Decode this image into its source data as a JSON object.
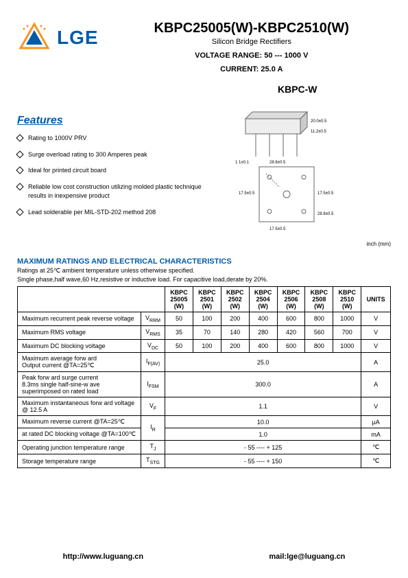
{
  "logo": {
    "text": "LGE",
    "color": "#005baa",
    "triangle_outer": "#f7941e",
    "triangle_inner": "#005baa"
  },
  "header": {
    "title": "KBPC25005(W)-KBPC2510(W)",
    "subtitle": "Silicon Bridge Rectifiers",
    "voltage_label": "VOLTAGE  RANGE:",
    "voltage_value": "50 --- 1000 V",
    "current_label": "CURRENT:",
    "current_value": "25.0 A"
  },
  "package_label": "KBPC-W",
  "inch_note": "inch (mm)",
  "features": {
    "title": "Features",
    "items": [
      "Rating to 1000V PRV",
      "Surge overload rating to 300 Amperes peak",
      "Ideal for printed circuit board",
      "Reliable low cost construction utilizing molded plastic technique results in inexpensive product",
      "Lead solderable per MIL-STD-202 method 208"
    ]
  },
  "ratings": {
    "title": "MAXIMUM RATINGS AND ELECTRICAL CHARACTERISTICS",
    "note1": "Ratings at 25℃ ambient temperature unless otherwise specified.",
    "note2": "Single phase,half wave,60 Hz,resistive or inductive load. For capacitive load,derate by 20%."
  },
  "table": {
    "columns": [
      "",
      "",
      "KBPC 25005 (W)",
      "KBPC 2501 (W)",
      "KBPC 2502 (W)",
      "KBPC 2504 (W)",
      "KBPC 2506 (W)",
      "KBPC 2508 (W)",
      "KBPC 2510 (W)",
      "UNITS"
    ],
    "rows": [
      {
        "label": "Maximum recurrent peak reverse voltage",
        "sym": "V",
        "sub": "RRM",
        "vals": [
          "50",
          "100",
          "200",
          "400",
          "600",
          "800",
          "1000"
        ],
        "unit": "V"
      },
      {
        "label": "Maximum RMS voltage",
        "sym": "V",
        "sub": "RMS",
        "vals": [
          "35",
          "70",
          "140",
          "280",
          "420",
          "560",
          "700"
        ],
        "unit": "V"
      },
      {
        "label": "Maximum DC blocking voltage",
        "sym": "V",
        "sub": "DC",
        "vals": [
          "50",
          "100",
          "200",
          "400",
          "600",
          "800",
          "1000"
        ],
        "unit": "V"
      },
      {
        "label": "Maximum average forw ard\n Output current     @TA=25℃",
        "sym": "I",
        "sub": "F(AV)",
        "span": "25.0",
        "unit": "A"
      },
      {
        "label": "Peak forw ard surge current\n 8.3ms single half-sine-w ave\n superimposed on rated load",
        "sym": "I",
        "sub": "FSM",
        "span": "300.0",
        "unit": "A"
      },
      {
        "label": "Maximum instantaneous forw ard voltage\n                      @  12.5  A",
        "sym": "V",
        "sub": "F",
        "span": "1.1",
        "unit": "V"
      },
      {
        "label": "Maximum reverse current        @TA=25℃",
        "sym": "I",
        "sub": "R",
        "span": "10.0",
        "unit": "µA",
        "row2label": " at rated DC blocking  voltage  @TA=100℃",
        "row2span": "1.0",
        "row2unit": "mA"
      },
      {
        "label": "Operating junction temperature range",
        "sym": "T",
        "sub": "J",
        "span": "- 55 ---- + 125",
        "unit": "℃"
      },
      {
        "label": "Storage temperature range",
        "sym": "T",
        "sub": "STG",
        "span": "- 55 ---- + 150",
        "unit": "℃"
      }
    ]
  },
  "footer": {
    "url": "http://www.luguang.cn",
    "email": "mail:lge@luguang.cn"
  },
  "diagram": {
    "side": {
      "w": 80,
      "h": 28,
      "leads_h": 30,
      "dims": [
        "1    1±0.1",
        "20.0±0.5",
        "11.2±0.5"
      ]
    },
    "top": {
      "size": 70,
      "dims": [
        "28.8±0.5",
        "17.5±0.5",
        "17.5±0.5",
        "28.8±0.5"
      ]
    }
  }
}
